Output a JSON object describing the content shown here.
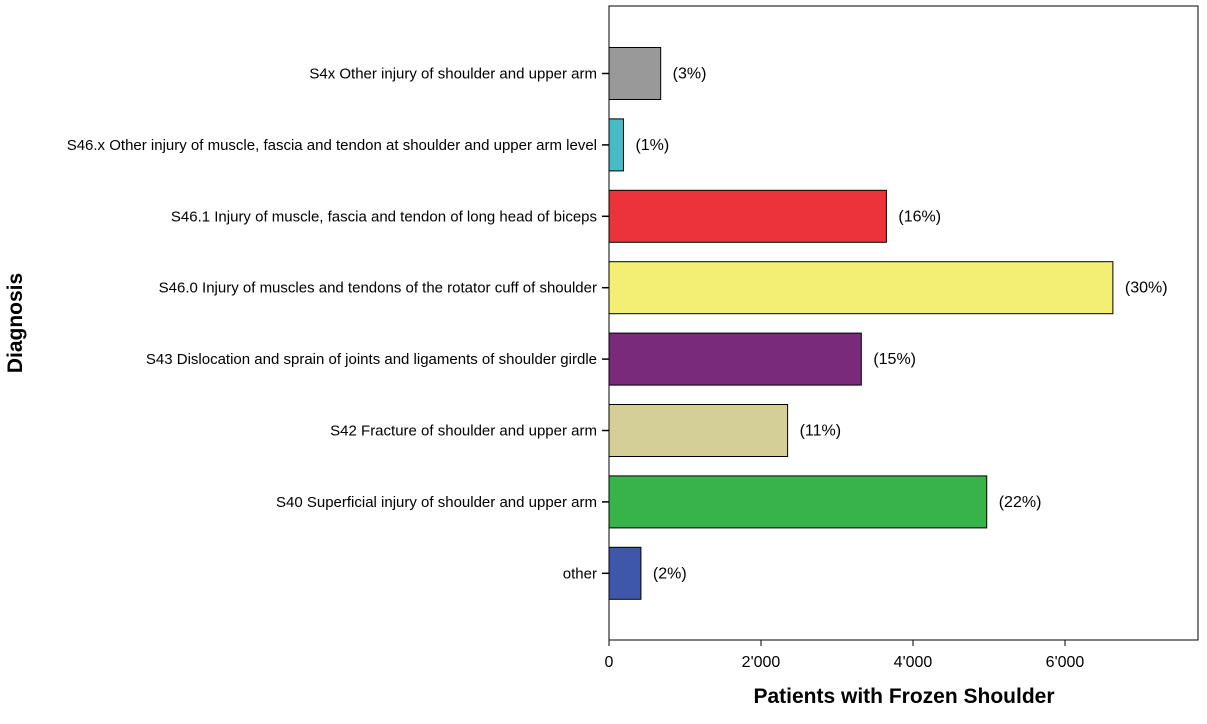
{
  "chart_data": {
    "type": "bar",
    "orientation": "horizontal",
    "xlabel": "Patients with Frozen Shoulder",
    "ylabel": "Diagnosis",
    "xlim": [
      0,
      7750
    ],
    "xticks": [
      0,
      2000,
      4000,
      6000
    ],
    "xtick_labels": [
      "0",
      "2'000",
      "4'000",
      "6'000"
    ],
    "grid": false,
    "bars": [
      {
        "category": "S4x Other injury of shoulder and upper arm",
        "value": 680,
        "label": "(3%)",
        "color": "#999999"
      },
      {
        "category": "S46.x Other injury of muscle, fascia and tendon at shoulder and upper arm level",
        "value": 190,
        "label": "(1%)",
        "color": "#47BCC7"
      },
      {
        "category": "S46.1 Injury of muscle, fascia and tendon of long head of biceps",
        "value": 3650,
        "label": "(16%)",
        "color": "#EC323B"
      },
      {
        "category": "S46.0 Injury of muscles and tendons of the rotator cuff of shoulder",
        "value": 6630,
        "label": "(30%)",
        "color": "#F3EF74"
      },
      {
        "category": "S43 Dislocation and sprain of joints and ligaments of shoulder girdle",
        "value": 3320,
        "label": "(15%)",
        "color": "#7A2A7A"
      },
      {
        "category": "S42 Fracture of shoulder and upper arm",
        "value": 2350,
        "label": "(11%)",
        "color": "#D3CF96"
      },
      {
        "category": "S40 Superficial injury of shoulder and upper arm",
        "value": 4970,
        "label": "(22%)",
        "color": "#37B34A"
      },
      {
        "category": "other",
        "value": 420,
        "label": "(2%)",
        "color": "#3F57AA"
      }
    ]
  }
}
